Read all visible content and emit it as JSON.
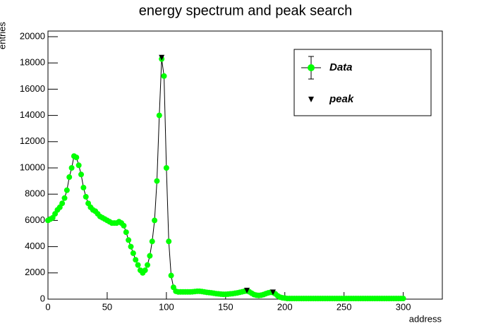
{
  "chart_data": {
    "type": "scatter",
    "title": "energy spectrum and peak search",
    "x_label": "address",
    "y_label": "entries",
    "xlim": [
      0,
      333
    ],
    "ylim": [
      0,
      20430
    ],
    "xticks": [
      0,
      50,
      100,
      150,
      200,
      250,
      300
    ],
    "yticks": [
      0,
      2000,
      4000,
      6000,
      8000,
      10000,
      12000,
      14000,
      16000,
      18000,
      20000
    ],
    "legend": "top-right",
    "series": [
      {
        "name": "Data",
        "color": "#00ff00",
        "line_color": "#000000",
        "x": [
          0,
          2,
          4,
          6,
          8,
          10,
          12,
          14,
          16,
          18,
          20,
          22,
          24,
          26,
          28,
          30,
          32,
          34,
          36,
          38,
          40,
          42,
          44,
          46,
          48,
          50,
          52,
          54,
          56,
          58,
          60,
          62,
          64,
          66,
          68,
          70,
          72,
          74,
          76,
          78,
          80,
          82,
          84,
          86,
          88,
          90,
          92,
          94,
          96,
          98,
          100,
          102,
          104,
          106,
          108,
          110,
          112,
          114,
          116,
          118,
          120,
          122,
          124,
          126,
          128,
          130,
          132,
          134,
          136,
          138,
          140,
          142,
          144,
          146,
          148,
          150,
          152,
          154,
          156,
          158,
          160,
          162,
          164,
          166,
          168,
          170,
          172,
          174,
          176,
          178,
          180,
          182,
          184,
          186,
          188,
          190,
          192,
          194,
          196,
          198,
          200,
          202,
          204,
          206,
          208,
          210,
          212,
          214,
          216,
          218,
          220,
          222,
          224,
          226,
          228,
          230,
          232,
          234,
          236,
          238,
          240,
          242,
          244,
          246,
          248,
          250,
          252,
          254,
          256,
          258,
          260,
          262,
          264,
          266,
          268,
          270,
          272,
          274,
          276,
          278,
          280,
          282,
          284,
          286,
          288,
          290,
          292,
          294,
          296,
          298,
          300
        ],
        "values": [
          6000,
          6100,
          6200,
          6500,
          6800,
          7000,
          7300,
          7700,
          8300,
          9300,
          10000,
          10900,
          10800,
          10200,
          9500,
          8500,
          7800,
          7300,
          7000,
          6800,
          6700,
          6500,
          6300,
          6200,
          6100,
          6000,
          5900,
          5800,
          5800,
          5800,
          5900,
          5800,
          5600,
          5100,
          4500,
          4000,
          3500,
          3000,
          2600,
          2200,
          2000,
          2200,
          2600,
          3300,
          4400,
          6000,
          9000,
          14000,
          18300,
          17000,
          10000,
          4400,
          1800,
          900,
          600,
          550,
          550,
          550,
          550,
          550,
          550,
          560,
          580,
          600,
          600,
          580,
          550,
          520,
          500,
          480,
          450,
          420,
          400,
          380,
          370,
          370,
          380,
          400,
          420,
          450,
          480,
          520,
          560,
          600,
          620,
          560,
          450,
          350,
          300,
          280,
          300,
          350,
          420,
          480,
          520,
          500,
          400,
          250,
          150,
          100,
          80,
          50,
          50,
          50,
          50,
          50,
          50,
          50,
          50,
          50,
          50,
          50,
          50,
          50,
          50,
          50,
          50,
          50,
          50,
          50,
          50,
          50,
          50,
          50,
          50,
          50,
          50,
          50,
          50,
          50,
          50,
          50,
          50,
          50,
          50,
          50,
          50,
          50,
          50,
          50,
          50,
          50,
          50,
          50,
          50,
          50,
          50,
          50,
          50,
          50,
          50
        ]
      },
      {
        "name": "peak",
        "color": "#000000",
        "marker": "triangle-down",
        "x": [
          96,
          168,
          190
        ],
        "values": [
          18400,
          650,
          520
        ]
      }
    ]
  }
}
